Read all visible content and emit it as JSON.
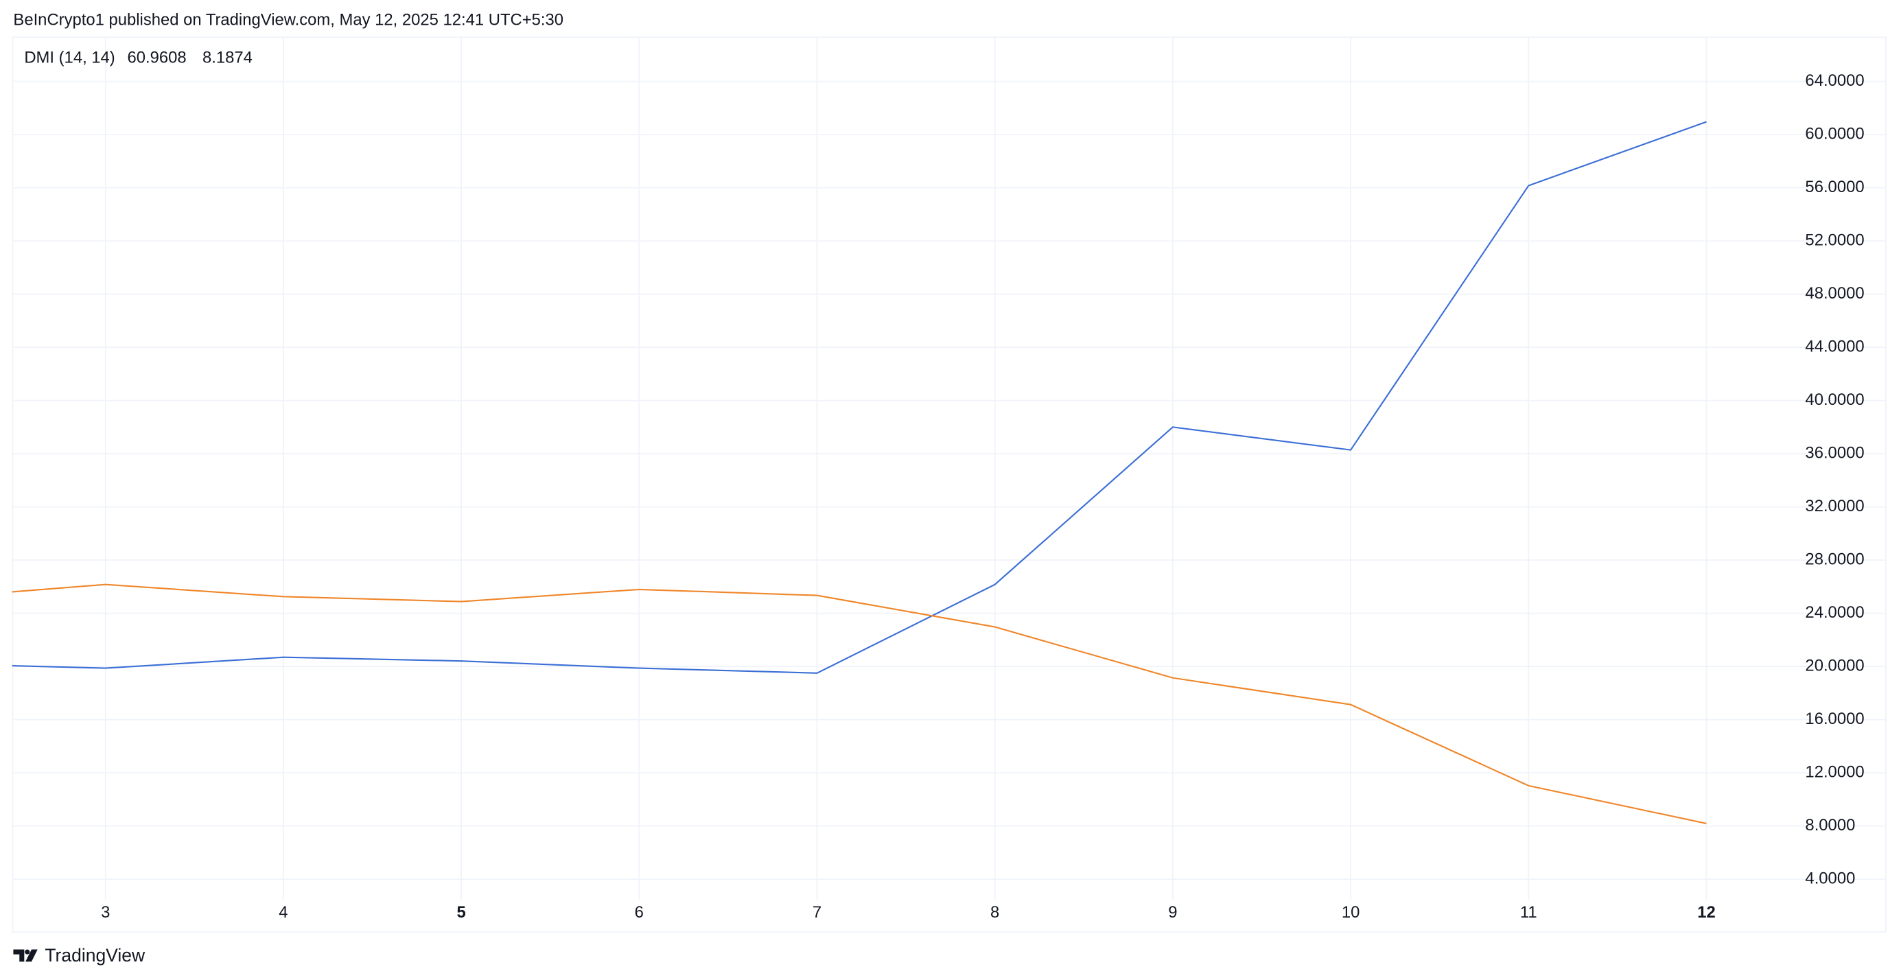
{
  "header": "BeInCrypto1 published on TradingView.com, May 12, 2025 12:41 UTC+5:30",
  "footer": "TradingView",
  "chart_data": {
    "type": "line",
    "indicator": "DMI (14, 14)",
    "x": [
      2.475,
      3,
      4,
      5,
      6,
      7,
      8,
      9,
      10,
      11,
      12
    ],
    "xlim": [
      2.475,
      12.46
    ],
    "xticks": [
      3,
      4,
      5,
      6,
      7,
      8,
      9,
      10,
      11,
      12
    ],
    "ylim": [
      2.45,
      67.37
    ],
    "yticks": [
      {
        "value": 4,
        "label": "4.0000"
      },
      {
        "value": 8,
        "label": "8.0000"
      },
      {
        "value": 12,
        "label": "12.0000"
      },
      {
        "value": 16,
        "label": "16.0000"
      },
      {
        "value": 20,
        "label": "20.0000"
      },
      {
        "value": 24,
        "label": "24.0000"
      },
      {
        "value": 28,
        "label": "28.0000"
      },
      {
        "value": 32,
        "label": "32.0000"
      },
      {
        "value": 36,
        "label": "36.0000"
      },
      {
        "value": 40,
        "label": "40.0000"
      },
      {
        "value": 44,
        "label": "44.0000"
      },
      {
        "value": 48,
        "label": "48.0000"
      },
      {
        "value": 52,
        "label": "52.0000"
      },
      {
        "value": 56,
        "label": "56.0000"
      },
      {
        "value": 60,
        "label": "60.0000"
      },
      {
        "value": 64,
        "label": "64.0000"
      }
    ],
    "grid": true,
    "series": [
      {
        "color": "#3b6fd6",
        "values": [
          20.05,
          19.87,
          20.69,
          20.41,
          19.87,
          19.5,
          26.16,
          38.0,
          36.28,
          56.16,
          60.9608
        ]
      },
      {
        "color": "#f0862a",
        "values": [
          25.61,
          26.16,
          25.25,
          24.88,
          25.79,
          25.34,
          22.97,
          19.14,
          17.13,
          11.03,
          8.1874
        ]
      }
    ]
  }
}
